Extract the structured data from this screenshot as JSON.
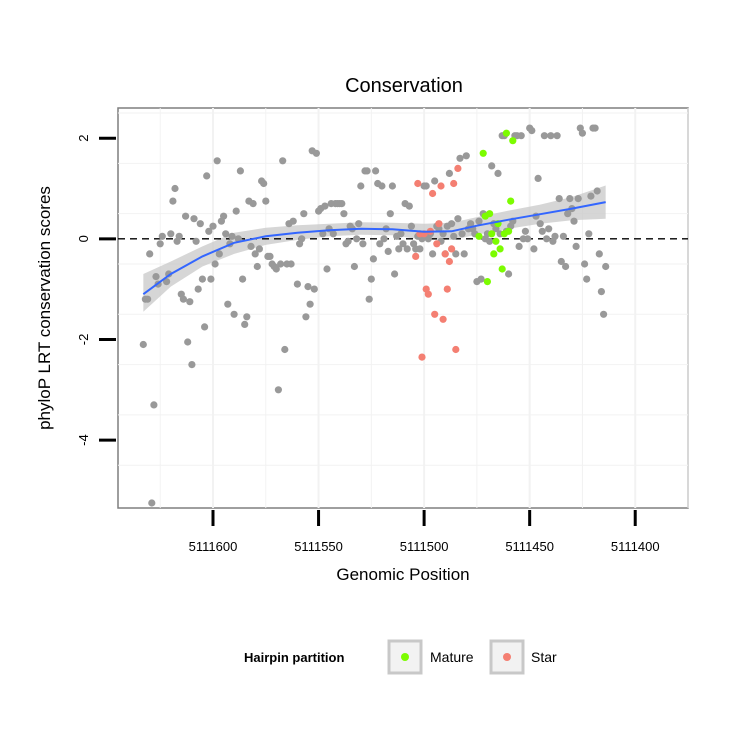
{
  "chart_data": {
    "type": "scatter",
    "title": "Conservation",
    "xlabel": "Genomic Position",
    "ylabel": "phyloP LRT conservation scores",
    "x_reversed": true,
    "xlim": [
      5111375,
      5111645
    ],
    "ylim": [
      -5.35,
      2.6
    ],
    "x_ticks": [
      5111600,
      5111550,
      5111500,
      5111450,
      5111400
    ],
    "x_tick_labels": [
      "5111600",
      "5111550",
      "5111500",
      "5111450",
      "5111400"
    ],
    "y_ticks": [
      2,
      0,
      -2,
      -4
    ],
    "y_tick_labels": [
      "2",
      "0",
      "-2",
      "-4"
    ],
    "reference_line": {
      "y": 0,
      "style": "dashed"
    },
    "colors": {
      "none": "#999999",
      "Mature": "#7cfc00",
      "Star": "#f47f72",
      "smooth": "#3366ff",
      "band": "#c8c8c8"
    },
    "legend": {
      "title": "Hairpin partition",
      "position": "bottom",
      "entries": [
        {
          "label": "Mature",
          "color": "#7cfc00"
        },
        {
          "label": "Star",
          "color": "#f47f72"
        }
      ]
    },
    "series": [
      {
        "name": "none",
        "points": [
          [
            5111633,
            -2.1
          ],
          [
            5111632,
            -1.2
          ],
          [
            5111631,
            -1.2
          ],
          [
            5111630,
            -0.3
          ],
          [
            5111629,
            -5.25
          ],
          [
            5111628,
            -3.3
          ],
          [
            5111627,
            -0.75
          ],
          [
            5111626,
            -0.9
          ],
          [
            5111625,
            -0.1
          ],
          [
            5111624,
            0.05
          ],
          [
            5111622,
            -0.85
          ],
          [
            5111621,
            -0.7
          ],
          [
            5111620,
            0.1
          ],
          [
            5111619,
            0.75
          ],
          [
            5111618,
            1.0
          ],
          [
            5111617,
            -0.05
          ],
          [
            5111616,
            0.05
          ],
          [
            5111615,
            -1.1
          ],
          [
            5111614,
            -1.2
          ],
          [
            5111613,
            0.45
          ],
          [
            5111612,
            -2.05
          ],
          [
            5111611,
            -1.25
          ],
          [
            5111610,
            -2.5
          ],
          [
            5111609,
            0.4
          ],
          [
            5111608,
            -0.05
          ],
          [
            5111607,
            -1.0
          ],
          [
            5111606,
            0.3
          ],
          [
            5111605,
            -0.8
          ],
          [
            5111604,
            -1.75
          ],
          [
            5111603,
            1.25
          ],
          [
            5111602,
            0.15
          ],
          [
            5111601,
            -0.8
          ],
          [
            5111600,
            0.25
          ],
          [
            5111599,
            -0.5
          ],
          [
            5111598,
            1.55
          ],
          [
            5111597,
            -0.3
          ],
          [
            5111596,
            0.35
          ],
          [
            5111595,
            0.45
          ],
          [
            5111594,
            0.1
          ],
          [
            5111593,
            -1.3
          ],
          [
            5111592,
            -0.1
          ],
          [
            5111591,
            0.05
          ],
          [
            5111590,
            -1.5
          ],
          [
            5111589,
            0.55
          ],
          [
            5111588,
            0.0
          ],
          [
            5111587,
            1.35
          ],
          [
            5111586,
            -0.8
          ],
          [
            5111585,
            -1.7
          ],
          [
            5111584,
            -1.55
          ],
          [
            5111583,
            0.75
          ],
          [
            5111582,
            -0.15
          ],
          [
            5111581,
            0.7
          ],
          [
            5111580,
            -0.3
          ],
          [
            5111579,
            -0.55
          ],
          [
            5111578,
            -0.2
          ],
          [
            5111577,
            1.15
          ],
          [
            5111576,
            1.1
          ],
          [
            5111575,
            0.75
          ],
          [
            5111574,
            -0.35
          ],
          [
            5111573,
            -0.35
          ],
          [
            5111572,
            -0.5
          ],
          [
            5111571,
            -0.55
          ],
          [
            5111570,
            -0.6
          ],
          [
            5111569,
            -3.0
          ],
          [
            5111568,
            -0.5
          ],
          [
            5111567,
            1.55
          ],
          [
            5111566,
            -2.2
          ],
          [
            5111565,
            -0.5
          ],
          [
            5111564,
            0.3
          ],
          [
            5111563,
            -0.5
          ],
          [
            5111562,
            0.35
          ],
          [
            5111560,
            -0.9
          ],
          [
            5111559,
            -0.1
          ],
          [
            5111558,
            0.0
          ],
          [
            5111557,
            0.5
          ],
          [
            5111556,
            -1.55
          ],
          [
            5111555,
            -0.95
          ],
          [
            5111554,
            -1.3
          ],
          [
            5111553,
            1.75
          ],
          [
            5111552,
            -1.0
          ],
          [
            5111551,
            1.7
          ],
          [
            5111550,
            0.55
          ],
          [
            5111549,
            0.6
          ],
          [
            5111548,
            0.1
          ],
          [
            5111547,
            0.65
          ],
          [
            5111546,
            -0.6
          ],
          [
            5111545,
            0.2
          ],
          [
            5111544,
            0.7
          ],
          [
            5111543,
            0.1
          ],
          [
            5111542,
            0.7
          ],
          [
            5111541,
            0.7
          ],
          [
            5111540,
            0.7
          ],
          [
            5111539,
            0.7
          ],
          [
            5111538,
            0.5
          ],
          [
            5111537,
            -0.1
          ],
          [
            5111536,
            -0.05
          ],
          [
            5111535,
            0.25
          ],
          [
            5111534,
            0.2
          ],
          [
            5111533,
            -0.55
          ],
          [
            5111532,
            0.0
          ],
          [
            5111531,
            0.3
          ],
          [
            5111530,
            1.05
          ],
          [
            5111529,
            -0.1
          ],
          [
            5111528,
            1.35
          ],
          [
            5111527,
            1.35
          ],
          [
            5111526,
            -1.2
          ],
          [
            5111525,
            -0.8
          ],
          [
            5111524,
            -0.4
          ],
          [
            5111523,
            1.35
          ],
          [
            5111522,
            1.1
          ],
          [
            5111521,
            -0.1
          ],
          [
            5111520,
            1.05
          ],
          [
            5111519,
            0.0
          ],
          [
            5111518,
            0.2
          ],
          [
            5111517,
            -0.25
          ],
          [
            5111516,
            0.5
          ],
          [
            5111515,
            1.05
          ],
          [
            5111514,
            -0.7
          ],
          [
            5111513,
            0.05
          ],
          [
            5111512,
            -0.2
          ],
          [
            5111511,
            0.1
          ],
          [
            5111510,
            -0.1
          ],
          [
            5111509,
            0.7
          ],
          [
            5111508,
            -0.2
          ],
          [
            5111507,
            0.65
          ],
          [
            5111506,
            0.25
          ],
          [
            5111505,
            -0.1
          ],
          [
            5111504,
            -0.2
          ],
          [
            5111503,
            0.05
          ],
          [
            5111502,
            -0.2
          ],
          [
            5111501,
            0.0
          ],
          [
            5111500,
            1.05
          ],
          [
            5111499,
            1.05
          ],
          [
            5111498,
            0.0
          ],
          [
            5111497,
            0.1
          ],
          [
            5111496,
            -0.3
          ],
          [
            5111495,
            1.15
          ],
          [
            5111494,
            0.25
          ],
          [
            5111493,
            0.2
          ],
          [
            5111492,
            -0.05
          ],
          [
            5111491,
            0.1
          ],
          [
            5111490,
            -0.3
          ],
          [
            5111489,
            0.25
          ],
          [
            5111488,
            1.3
          ],
          [
            5111487,
            0.3
          ],
          [
            5111486,
            0.05
          ],
          [
            5111485,
            -0.3
          ],
          [
            5111484,
            0.4
          ],
          [
            5111483,
            1.6
          ],
          [
            5111482,
            0.1
          ],
          [
            5111481,
            -0.3
          ],
          [
            5111480,
            1.65
          ],
          [
            5111479,
            0.2
          ],
          [
            5111478,
            0.3
          ],
          [
            5111477,
            0.2
          ],
          [
            5111476,
            0.1
          ],
          [
            5111475,
            -0.85
          ],
          [
            5111474,
            0.35
          ],
          [
            5111473,
            -0.8
          ],
          [
            5111472,
            0.5
          ],
          [
            5111471,
            0.0
          ],
          [
            5111470,
            0.1
          ],
          [
            5111469,
            -0.05
          ],
          [
            5111468,
            1.45
          ],
          [
            5111467,
            0.3
          ],
          [
            5111466,
            0.2
          ],
          [
            5111465,
            1.3
          ],
          [
            5111464,
            0.1
          ],
          [
            5111463,
            2.05
          ],
          [
            5111462,
            2.05
          ],
          [
            5111461,
            0.15
          ],
          [
            5111460,
            -0.7
          ],
          [
            5111459,
            0.25
          ],
          [
            5111458,
            0.35
          ],
          [
            5111457,
            2.05
          ],
          [
            5111456,
            2.05
          ],
          [
            5111455,
            -0.15
          ],
          [
            5111454,
            2.05
          ],
          [
            5111453,
            0.0
          ],
          [
            5111452,
            0.15
          ],
          [
            5111451,
            0.0
          ],
          [
            5111450,
            2.2
          ],
          [
            5111449,
            2.15
          ],
          [
            5111448,
            -0.2
          ],
          [
            5111447,
            0.45
          ],
          [
            5111446,
            1.2
          ],
          [
            5111445,
            0.3
          ],
          [
            5111444,
            0.15
          ],
          [
            5111443,
            2.05
          ],
          [
            5111442,
            0.0
          ],
          [
            5111441,
            0.2
          ],
          [
            5111440,
            2.05
          ],
          [
            5111439,
            -0.05
          ],
          [
            5111438,
            0.05
          ],
          [
            5111437,
            2.05
          ],
          [
            5111436,
            0.8
          ],
          [
            5111435,
            -0.45
          ],
          [
            5111434,
            0.05
          ],
          [
            5111433,
            -0.55
          ],
          [
            5111432,
            0.5
          ],
          [
            5111431,
            0.8
          ],
          [
            5111430,
            0.6
          ],
          [
            5111429,
            0.35
          ],
          [
            5111428,
            -0.15
          ],
          [
            5111427,
            0.8
          ],
          [
            5111426,
            2.2
          ],
          [
            5111425,
            2.1
          ],
          [
            5111424,
            -0.5
          ],
          [
            5111423,
            -0.8
          ],
          [
            5111422,
            0.1
          ],
          [
            5111421,
            0.85
          ],
          [
            5111420,
            2.2
          ],
          [
            5111419,
            2.2
          ],
          [
            5111418,
            0.95
          ],
          [
            5111417,
            -0.3
          ],
          [
            5111416,
            -1.05
          ],
          [
            5111415,
            -1.5
          ],
          [
            5111414,
            -0.55
          ]
        ]
      },
      {
        "name": "Mature",
        "points": [
          [
            5111474,
            0.05
          ],
          [
            5111472,
            1.7
          ],
          [
            5111471,
            0.45
          ],
          [
            5111470,
            -0.85
          ],
          [
            5111469,
            0.5
          ],
          [
            5111468,
            0.1
          ],
          [
            5111467,
            -0.3
          ],
          [
            5111466,
            -0.05
          ],
          [
            5111465,
            0.3
          ],
          [
            5111464,
            -0.2
          ],
          [
            5111463,
            -0.6
          ],
          [
            5111462,
            0.1
          ],
          [
            5111461,
            2.1
          ],
          [
            5111460,
            0.15
          ],
          [
            5111459,
            0.75
          ],
          [
            5111458,
            1.95
          ]
        ]
      },
      {
        "name": "Star",
        "points": [
          [
            5111504,
            -0.35
          ],
          [
            5111503,
            1.1
          ],
          [
            5111502,
            0.1
          ],
          [
            5111501,
            -2.35
          ],
          [
            5111500,
            0.1
          ],
          [
            5111499,
            -1.0
          ],
          [
            5111498,
            -1.1
          ],
          [
            5111497,
            0.15
          ],
          [
            5111496,
            0.9
          ],
          [
            5111495,
            -1.5
          ],
          [
            5111494,
            -0.1
          ],
          [
            5111493,
            0.3
          ],
          [
            5111492,
            1.05
          ],
          [
            5111491,
            -1.6
          ],
          [
            5111490,
            -0.3
          ],
          [
            5111489,
            -1.0
          ],
          [
            5111488,
            -0.45
          ],
          [
            5111487,
            -0.2
          ],
          [
            5111486,
            1.1
          ],
          [
            5111485,
            -2.2
          ],
          [
            5111484,
            1.4
          ]
        ]
      }
    ],
    "smooth_fit": {
      "method": "loess",
      "points": [
        {
          "x": 5111633,
          "y": -1.1,
          "lo": -1.45,
          "hi": -0.7
        },
        {
          "x": 5111620,
          "y": -0.7,
          "lo": -0.95,
          "hi": -0.45
        },
        {
          "x": 5111605,
          "y": -0.35,
          "lo": -0.55,
          "hi": -0.15
        },
        {
          "x": 5111590,
          "y": -0.08,
          "lo": -0.3,
          "hi": 0.12
        },
        {
          "x": 5111575,
          "y": 0.05,
          "lo": -0.12,
          "hi": 0.22
        },
        {
          "x": 5111560,
          "y": 0.12,
          "lo": -0.02,
          "hi": 0.27
        },
        {
          "x": 5111545,
          "y": 0.17,
          "lo": 0.05,
          "hi": 0.3
        },
        {
          "x": 5111530,
          "y": 0.2,
          "lo": 0.08,
          "hi": 0.33
        },
        {
          "x": 5111515,
          "y": 0.19,
          "lo": 0.07,
          "hi": 0.32
        },
        {
          "x": 5111500,
          "y": 0.14,
          "lo": -0.02,
          "hi": 0.3
        },
        {
          "x": 5111487,
          "y": 0.15,
          "lo": -0.02,
          "hi": 0.32
        },
        {
          "x": 5111475,
          "y": 0.26,
          "lo": 0.08,
          "hi": 0.43
        },
        {
          "x": 5111460,
          "y": 0.38,
          "lo": 0.2,
          "hi": 0.56
        },
        {
          "x": 5111445,
          "y": 0.49,
          "lo": 0.3,
          "hi": 0.68
        },
        {
          "x": 5111430,
          "y": 0.6,
          "lo": 0.37,
          "hi": 0.83
        },
        {
          "x": 5111414,
          "y": 0.73,
          "lo": 0.4,
          "hi": 1.06
        }
      ]
    }
  }
}
